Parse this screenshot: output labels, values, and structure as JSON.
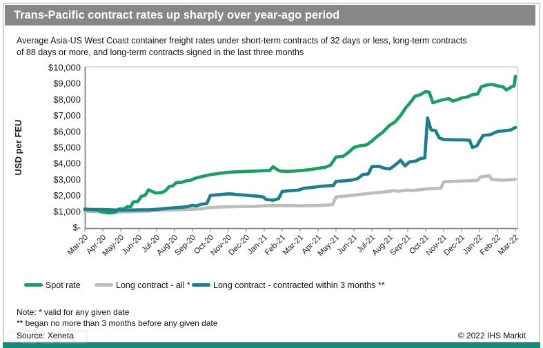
{
  "header": {
    "title": "Trans-Pacific contract rates up sharply over year-ago period"
  },
  "subtitle": {
    "line1": "Average Asia-US West Coast container freight rates under short-term contracts of 32 days or less, long-term contracts",
    "line2": "of 88 days or more, and long-term contracts signed in the last three months"
  },
  "footer": {
    "note1": "Note: * valid for any given date",
    "note2": "** began no more than 3 months before any given date",
    "source": "Source: Xeneta",
    "copyright": "© 2022 IHS Markit"
  },
  "colors": {
    "title_bar": "#878787",
    "spot_green": "#18a05f",
    "long_all_gray": "#bcbcbc",
    "long_3mo_teal": "#1b7f8e",
    "axis": "#7d7d7d",
    "plot_border": "#b8b8b8",
    "brand_bar": "#16897e"
  },
  "chart_data": {
    "type": "line",
    "y_axis_label": "USD per FEU",
    "y_max": 10000,
    "y_min": 0,
    "grid": false,
    "legend_position": "bottom",
    "y_ticks": [
      "$10,000",
      "$9,000",
      "$8,000",
      "$7,000",
      "$6,000",
      "$5,000",
      "$4,000",
      "$3,000",
      "$2,000",
      "$1,000",
      "$-"
    ],
    "x_labels": [
      "Mar-20",
      "Apr-20",
      "May-20",
      "Jun-20",
      "Jul-20",
      "Aug-20",
      "Sep-20",
      "Oct-20",
      "Nov-20",
      "Dec-20",
      "Jan-21",
      "Feb-21",
      "Mar-21",
      "Apr-21",
      "May-21",
      "Jun-21",
      "Jul-21",
      "Aug-21",
      "Sep-21",
      "Oct-21",
      "Nov-21",
      "Dec-21",
      "Jan-22",
      "Feb-22",
      "Mar-22"
    ],
    "x_unit": "months since Mar-2020",
    "legend": [
      {
        "label": "Spot rate",
        "color": "#18a05f"
      },
      {
        "label": "Long contract - all *",
        "color": "#bcbcbc"
      },
      {
        "label": "Long contract - contracted within 3 months **",
        "color": "#1b7f8e"
      }
    ],
    "draw_order": [
      1,
      0,
      2
    ],
    "series": [
      {
        "name": "Spot rate",
        "color": "#18a05f",
        "points": [
          [
            0,
            1150
          ],
          [
            0.3,
            1120
          ],
          [
            0.7,
            1080
          ],
          [
            1,
            950
          ],
          [
            1.4,
            900
          ],
          [
            1.7,
            950
          ],
          [
            1.9,
            1150
          ],
          [
            2.2,
            1160
          ],
          [
            2.35,
            1300
          ],
          [
            2.55,
            1290
          ],
          [
            2.7,
            1600
          ],
          [
            2.95,
            1620
          ],
          [
            3.15,
            1950
          ],
          [
            3.35,
            2000
          ],
          [
            3.55,
            2350
          ],
          [
            3.75,
            2250
          ],
          [
            3.95,
            2150
          ],
          [
            4.3,
            2180
          ],
          [
            4.5,
            2300
          ],
          [
            4.7,
            2550
          ],
          [
            4.9,
            2600
          ],
          [
            5.1,
            2800
          ],
          [
            5.4,
            2820
          ],
          [
            5.6,
            2900
          ],
          [
            5.9,
            2950
          ],
          [
            6.1,
            3050
          ],
          [
            6.4,
            3150
          ],
          [
            6.6,
            3200
          ],
          [
            7,
            3300
          ],
          [
            7.5,
            3380
          ],
          [
            8,
            3450
          ],
          [
            8.5,
            3480
          ],
          [
            9,
            3500
          ],
          [
            9.5,
            3520
          ],
          [
            10,
            3550
          ],
          [
            10.3,
            3560
          ],
          [
            10.5,
            3800
          ],
          [
            10.7,
            3620
          ],
          [
            10.9,
            3520
          ],
          [
            11.4,
            3500
          ],
          [
            12,
            3550
          ],
          [
            12.6,
            3620
          ],
          [
            13,
            3700
          ],
          [
            13.4,
            3760
          ],
          [
            13.7,
            3900
          ],
          [
            14,
            4400
          ],
          [
            14.4,
            4450
          ],
          [
            14.7,
            4700
          ],
          [
            15,
            5000
          ],
          [
            15.3,
            5100
          ],
          [
            15.7,
            5160
          ],
          [
            16,
            5400
          ],
          [
            16.3,
            5700
          ],
          [
            16.6,
            5950
          ],
          [
            17,
            6400
          ],
          [
            17.3,
            6600
          ],
          [
            17.6,
            7000
          ],
          [
            17.9,
            7500
          ],
          [
            18.1,
            7750
          ],
          [
            18.4,
            8200
          ],
          [
            18.7,
            8300
          ],
          [
            19,
            8500
          ],
          [
            19.2,
            8450
          ],
          [
            19.4,
            7800
          ],
          [
            19.7,
            7900
          ],
          [
            20,
            8000
          ],
          [
            20.3,
            8050
          ],
          [
            20.5,
            7900
          ],
          [
            20.8,
            8000
          ],
          [
            21,
            8100
          ],
          [
            21.3,
            8150
          ],
          [
            21.6,
            8300
          ],
          [
            21.9,
            8350
          ],
          [
            22.1,
            8800
          ],
          [
            22.4,
            8900
          ],
          [
            22.7,
            8950
          ],
          [
            23,
            8850
          ],
          [
            23.3,
            8800
          ],
          [
            23.5,
            8600
          ],
          [
            23.8,
            8800
          ],
          [
            23.93,
            8850
          ],
          [
            24,
            9450
          ]
        ]
      },
      {
        "name": "Long contract - all *",
        "color": "#bcbcbc",
        "points": [
          [
            0,
            1000
          ],
          [
            0.5,
            990
          ],
          [
            1,
            960
          ],
          [
            1.5,
            950
          ],
          [
            2,
            960
          ],
          [
            2.5,
            980
          ],
          [
            3,
            1000
          ],
          [
            3.5,
            1020
          ],
          [
            4,
            1060
          ],
          [
            4.5,
            1080
          ],
          [
            5,
            1100
          ],
          [
            5.5,
            1120
          ],
          [
            6,
            1140
          ],
          [
            6.5,
            1160
          ],
          [
            7,
            1250
          ],
          [
            7.5,
            1270
          ],
          [
            8,
            1290
          ],
          [
            8.5,
            1300
          ],
          [
            9,
            1310
          ],
          [
            9.5,
            1320
          ],
          [
            10,
            1350
          ],
          [
            10.5,
            1360
          ],
          [
            11,
            1365
          ],
          [
            11.5,
            1360
          ],
          [
            12,
            1350
          ],
          [
            12.5,
            1360
          ],
          [
            13,
            1370
          ],
          [
            13.5,
            1400
          ],
          [
            13.8,
            1420
          ],
          [
            14,
            1900
          ],
          [
            14.5,
            1960
          ],
          [
            15,
            2020
          ],
          [
            15.5,
            2080
          ],
          [
            16,
            2150
          ],
          [
            16.5,
            2200
          ],
          [
            17,
            2260
          ],
          [
            17.2,
            2300
          ],
          [
            17.45,
            2260
          ],
          [
            17.7,
            2290
          ],
          [
            18,
            2330
          ],
          [
            18.3,
            2310
          ],
          [
            18.6,
            2350
          ],
          [
            19,
            2400
          ],
          [
            19.5,
            2430
          ],
          [
            19.85,
            2450
          ],
          [
            20,
            2850
          ],
          [
            20.5,
            2880
          ],
          [
            21,
            2900
          ],
          [
            21.5,
            2920
          ],
          [
            21.9,
            2950
          ],
          [
            22.05,
            3150
          ],
          [
            22.3,
            3200
          ],
          [
            22.55,
            3220
          ],
          [
            22.7,
            2990
          ],
          [
            23.2,
            2960
          ],
          [
            23.6,
            2970
          ],
          [
            24,
            3000
          ]
        ]
      },
      {
        "name": "Long contract - contracted within 3 months **",
        "color": "#1b7f8e",
        "points": [
          [
            0,
            1120
          ],
          [
            0.5,
            1120
          ],
          [
            1,
            1120
          ],
          [
            1.5,
            1100
          ],
          [
            2,
            1080
          ],
          [
            2.5,
            1080
          ],
          [
            3,
            1100
          ],
          [
            3.5,
            1100
          ],
          [
            4,
            1130
          ],
          [
            4.5,
            1180
          ],
          [
            5,
            1230
          ],
          [
            5.4,
            1260
          ],
          [
            5.7,
            1300
          ],
          [
            6,
            1380
          ],
          [
            6.2,
            1350
          ],
          [
            6.5,
            1450
          ],
          [
            6.8,
            1500
          ],
          [
            7,
            2000
          ],
          [
            7.4,
            2040
          ],
          [
            7.8,
            2080
          ],
          [
            8.1,
            2100
          ],
          [
            8.5,
            2050
          ],
          [
            8.9,
            2020
          ],
          [
            9.3,
            1980
          ],
          [
            9.7,
            1950
          ],
          [
            9.95,
            1900
          ],
          [
            10.1,
            1750
          ],
          [
            10.5,
            1700
          ],
          [
            10.8,
            1800
          ],
          [
            11,
            2250
          ],
          [
            11.5,
            2300
          ],
          [
            11.9,
            2330
          ],
          [
            12.2,
            2450
          ],
          [
            12.7,
            2500
          ],
          [
            13.1,
            2570
          ],
          [
            13.5,
            2600
          ],
          [
            13.85,
            2620
          ],
          [
            14,
            2880
          ],
          [
            14.5,
            2920
          ],
          [
            14.9,
            2960
          ],
          [
            15.2,
            3050
          ],
          [
            15.5,
            3300
          ],
          [
            15.8,
            3350
          ],
          [
            16,
            3800
          ],
          [
            16.4,
            3820
          ],
          [
            16.7,
            3700
          ],
          [
            17,
            3660
          ],
          [
            17.3,
            3900
          ],
          [
            17.6,
            4200
          ],
          [
            17.85,
            3850
          ],
          [
            18.1,
            4100
          ],
          [
            18.45,
            4150
          ],
          [
            18.7,
            4300
          ],
          [
            18.95,
            4350
          ],
          [
            19.1,
            6850
          ],
          [
            19.3,
            6100
          ],
          [
            19.55,
            6050
          ],
          [
            19.75,
            5600
          ],
          [
            20,
            5500
          ],
          [
            20.6,
            5480
          ],
          [
            21.2,
            5470
          ],
          [
            21.45,
            5450
          ],
          [
            21.6,
            5000
          ],
          [
            21.85,
            5100
          ],
          [
            22,
            5400
          ],
          [
            22.2,
            5750
          ],
          [
            22.6,
            5800
          ],
          [
            23,
            6000
          ],
          [
            23.45,
            6050
          ],
          [
            23.75,
            6100
          ],
          [
            24,
            6250
          ]
        ]
      }
    ]
  }
}
